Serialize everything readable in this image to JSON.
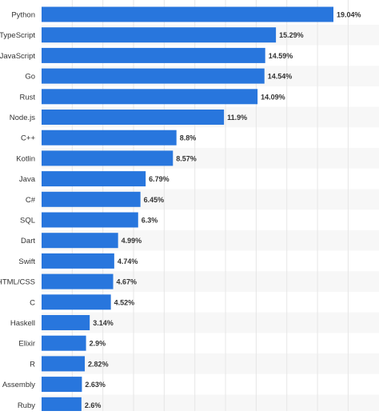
{
  "chart_data": {
    "type": "bar",
    "orientation": "horizontal",
    "categories": [
      "Python",
      "TypeScript",
      "JavaScript",
      "Go",
      "Rust",
      "Node.js",
      "C++",
      "Kotlin",
      "Java",
      "C#",
      "SQL",
      "Dart",
      "Swift",
      "HTML/CSS",
      "C",
      "Haskell",
      "Elixir",
      "R",
      "Assembly",
      "Ruby"
    ],
    "values": [
      19.04,
      15.29,
      14.59,
      14.54,
      14.09,
      11.9,
      8.8,
      8.57,
      6.79,
      6.45,
      6.3,
      4.99,
      4.74,
      4.67,
      4.52,
      3.14,
      2.9,
      2.82,
      2.63,
      2.6
    ],
    "data_labels": [
      "19.04%",
      "15.29%",
      "14.59%",
      "14.54%",
      "14.09%",
      "11.9%",
      "8.8%",
      "8.57%",
      "6.79%",
      "6.45%",
      "6.3%",
      "4.99%",
      "4.74%",
      "4.67%",
      "4.52%",
      "3.14%",
      "2.9%",
      "2.82%",
      "2.63%",
      "2.6%"
    ],
    "value_unit": "%",
    "xlim": [
      0,
      20
    ],
    "grid": true,
    "bar_color": "#2876dd",
    "stripe_color": "#f7f7f7",
    "gridline_color": "#e6e6e6",
    "label_color": "#333333",
    "title": "",
    "xlabel": "",
    "ylabel": ""
  }
}
